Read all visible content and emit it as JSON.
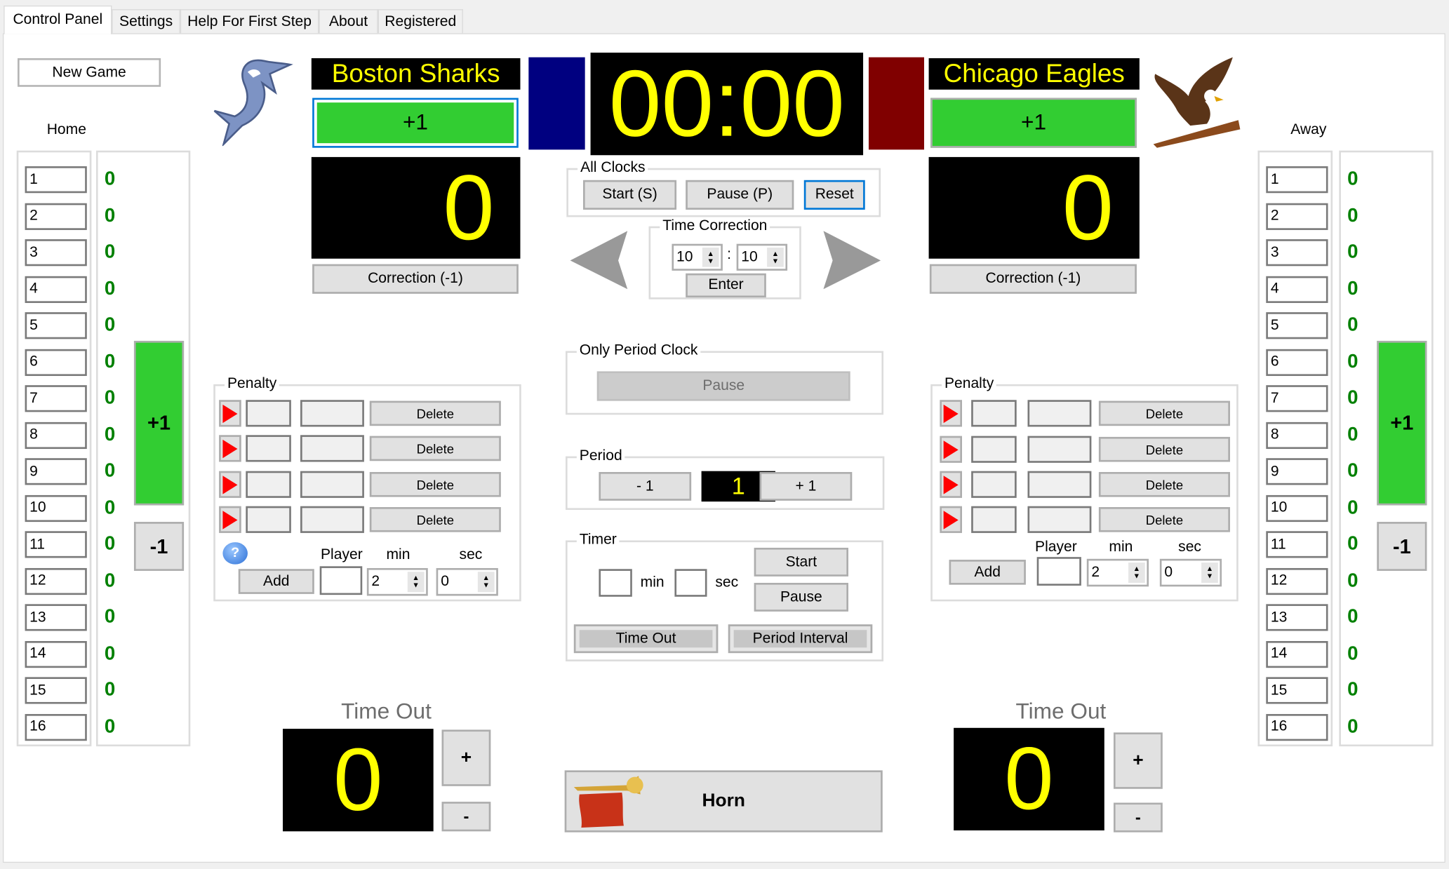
{
  "tabs": [
    {
      "label": "Control Panel",
      "active": true
    },
    {
      "label": "Settings"
    },
    {
      "label": "Help For First Step"
    },
    {
      "label": "About"
    },
    {
      "label": "Registered"
    }
  ],
  "new_game": "New Game",
  "main_clock": "00:00",
  "colors": {
    "home": "#000080",
    "away": "#800000",
    "display_text": "#ffff00",
    "score_green": "#32cd32",
    "player_score": "#008000"
  },
  "home": {
    "label": "Home",
    "team_name": "Boston Sharks",
    "plus_label": "+1",
    "score": "0",
    "correction": "Correction (-1)",
    "big_plus": "+1",
    "big_minus": "-1",
    "logo": "shark",
    "players": [
      {
        "n": "1",
        "s": "0"
      },
      {
        "n": "2",
        "s": "0"
      },
      {
        "n": "3",
        "s": "0"
      },
      {
        "n": "4",
        "s": "0"
      },
      {
        "n": "5",
        "s": "0"
      },
      {
        "n": "6",
        "s": "0"
      },
      {
        "n": "7",
        "s": "0"
      },
      {
        "n": "8",
        "s": "0"
      },
      {
        "n": "9",
        "s": "0"
      },
      {
        "n": "10",
        "s": "0"
      },
      {
        "n": "11",
        "s": "0"
      },
      {
        "n": "12",
        "s": "0"
      },
      {
        "n": "13",
        "s": "0"
      },
      {
        "n": "14",
        "s": "0"
      },
      {
        "n": "15",
        "s": "0"
      },
      {
        "n": "16",
        "s": "0"
      }
    ],
    "penalty": {
      "title": "Penalty",
      "delete": "Delete",
      "player_label": "Player",
      "min_label": "min",
      "sec_label": "sec",
      "add": "Add",
      "player": "",
      "min": "2",
      "sec": "0"
    },
    "timeout": {
      "label": "Time Out",
      "value": "0",
      "plus": "+",
      "minus": "-"
    }
  },
  "away": {
    "label": "Away",
    "team_name": "Chicago Eagles",
    "plus_label": "+1",
    "score": "0",
    "correction": "Correction (-1)",
    "big_plus": "+1",
    "big_minus": "-1",
    "logo": "eagle",
    "players": [
      {
        "n": "1",
        "s": "0"
      },
      {
        "n": "2",
        "s": "0"
      },
      {
        "n": "3",
        "s": "0"
      },
      {
        "n": "4",
        "s": "0"
      },
      {
        "n": "5",
        "s": "0"
      },
      {
        "n": "6",
        "s": "0"
      },
      {
        "n": "7",
        "s": "0"
      },
      {
        "n": "8",
        "s": "0"
      },
      {
        "n": "9",
        "s": "0"
      },
      {
        "n": "10",
        "s": "0"
      },
      {
        "n": "11",
        "s": "0"
      },
      {
        "n": "12",
        "s": "0"
      },
      {
        "n": "13",
        "s": "0"
      },
      {
        "n": "14",
        "s": "0"
      },
      {
        "n": "15",
        "s": "0"
      },
      {
        "n": "16",
        "s": "0"
      }
    ],
    "penalty": {
      "title": "Penalty",
      "delete": "Delete",
      "player_label": "Player",
      "min_label": "min",
      "sec_label": "sec",
      "add": "Add",
      "player": "",
      "min": "2",
      "sec": "0"
    },
    "timeout": {
      "label": "Time Out",
      "value": "0",
      "plus": "+",
      "minus": "-"
    }
  },
  "all_clocks": {
    "title": "All Clocks",
    "start": "Start (S)",
    "pause": "Pause (P)",
    "reset": "Reset"
  },
  "time_correction": {
    "title": "Time Correction",
    "min": "10",
    "sep": ":",
    "sec": "10",
    "enter": "Enter"
  },
  "period_clock": {
    "title": "Only Period Clock",
    "pause": "Pause"
  },
  "period": {
    "title": "Period",
    "minus": "- 1",
    "value": "1",
    "plus": "+ 1"
  },
  "timer": {
    "title": "Timer",
    "min_label": "min",
    "sec_label": "sec",
    "min": "",
    "sec": "",
    "start": "Start",
    "pause": "Pause",
    "time_out": "Time Out",
    "period_interval": "Period Interval"
  },
  "horn": "Horn"
}
